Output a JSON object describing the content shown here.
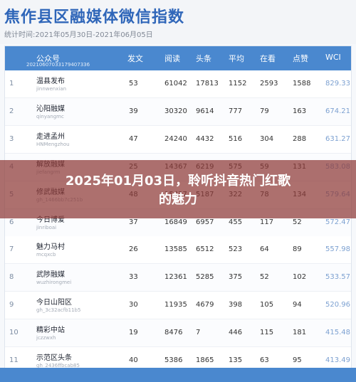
{
  "page": {
    "title": "焦作县区融媒体微信指数",
    "subtitle": "统计时间:2021年05月30日-2021年06月05日"
  },
  "table": {
    "headers": {
      "account": "公众号",
      "posts": "发文",
      "reads": "阅读",
      "top": "头条",
      "avg": "平均",
      "watching": "在看",
      "likes": "点赞",
      "wci": "WCI"
    },
    "id_strip": "20210607033179407336",
    "rows": [
      {
        "rank": "1",
        "name": "温县发布",
        "account": "jinnwenxian",
        "posts": "53",
        "reads": "61042",
        "top": "17813",
        "avg": "1152",
        "watching": "2593",
        "likes": "1588",
        "wci": "829.33"
      },
      {
        "rank": "2",
        "name": "沁阳融媒",
        "account": "qinyangmc",
        "posts": "39",
        "reads": "30320",
        "top": "9614",
        "avg": "777",
        "watching": "79",
        "likes": "163",
        "wci": "674.21"
      },
      {
        "rank": "3",
        "name": "走进孟州",
        "account": "HNMengzhou",
        "posts": "47",
        "reads": "24240",
        "top": "4432",
        "avg": "516",
        "watching": "304",
        "likes": "288",
        "wci": "631.27"
      },
      {
        "rank": "4",
        "name": "解放融媒",
        "account": "jiefangrm",
        "posts": "25",
        "reads": "14367",
        "top": "6219",
        "avg": "575",
        "watching": "59",
        "likes": "131",
        "wci": "583.08"
      },
      {
        "rank": "5",
        "name": "修武融媒",
        "account": "gh_1466bb7c251b",
        "posts": "48",
        "reads": "15437",
        "top": "5187",
        "avg": "322",
        "watching": "78",
        "likes": "134",
        "wci": "579.64"
      },
      {
        "rank": "6",
        "name": "今日博爱",
        "account": "jinriboai",
        "posts": "37",
        "reads": "16849",
        "top": "6957",
        "avg": "455",
        "watching": "117",
        "likes": "52",
        "wci": "572.47"
      },
      {
        "rank": "7",
        "name": "魅力马村",
        "account": "mcqxcb",
        "posts": "26",
        "reads": "13585",
        "top": "6512",
        "avg": "523",
        "watching": "64",
        "likes": "89",
        "wci": "557.98"
      },
      {
        "rank": "8",
        "name": "武陟融媒",
        "account": "wuzhirongmei",
        "posts": "33",
        "reads": "12361",
        "top": "5285",
        "avg": "375",
        "watching": "52",
        "likes": "102",
        "wci": "533.57"
      },
      {
        "rank": "9",
        "name": "今日山阳区",
        "account": "gh_3c32acfb11b5",
        "posts": "30",
        "reads": "11935",
        "top": "4679",
        "avg": "398",
        "watching": "105",
        "likes": "94",
        "wci": "520.96"
      },
      {
        "rank": "10",
        "name": "精彩中站",
        "account": "jczzwxh",
        "posts": "19",
        "reads": "8476",
        "top": "7",
        "avg": "446",
        "watching": "115",
        "likes": "181",
        "wci": "415.48"
      },
      {
        "rank": "11",
        "name": "示范区头条",
        "account": "gh_2436ffbcab85",
        "posts": "40",
        "reads": "5386",
        "top": "1865",
        "avg": "135",
        "watching": "63",
        "likes": "95",
        "wci": "413.49"
      }
    ]
  },
  "overlay": {
    "banner_line1": "2025年01月03日，聆听抖音热门红歌",
    "banner_line2": "的魅力"
  }
}
